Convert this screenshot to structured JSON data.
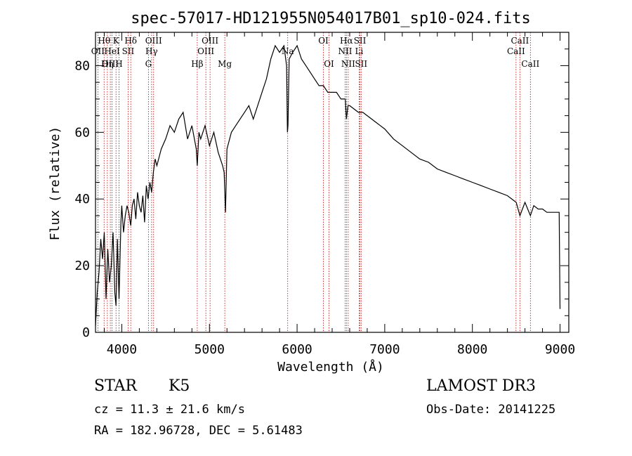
{
  "chart_data": {
    "type": "line",
    "title": "spec-57017-HD121955N054017B01_sp10-024.fits",
    "xlabel": "Wavelength (Å)",
    "ylabel": "Flux (relative)",
    "xlim": [
      3700,
      9100
    ],
    "ylim": [
      0,
      90
    ],
    "x_ticks": [
      4000,
      5000,
      6000,
      7000,
      8000,
      9000
    ],
    "y_ticks": [
      0,
      20,
      40,
      60,
      80
    ],
    "series": [
      {
        "name": "flux",
        "x": [
          3700,
          3720,
          3740,
          3760,
          3780,
          3800,
          3820,
          3840,
          3860,
          3880,
          3900,
          3920,
          3934,
          3950,
          3968,
          3990,
          4000,
          4020,
          4040,
          4060,
          4080,
          4102,
          4120,
          4140,
          4160,
          4180,
          4200,
          4220,
          4240,
          4260,
          4280,
          4300,
          4320,
          4340,
          4360,
          4380,
          4400,
          4450,
          4500,
          4550,
          4600,
          4650,
          4700,
          4750,
          4800,
          4850,
          4861,
          4880,
          4900,
          4950,
          5000,
          5050,
          5100,
          5150,
          5168,
          5183,
          5200,
          5250,
          5300,
          5350,
          5400,
          5450,
          5500,
          5550,
          5600,
          5650,
          5700,
          5750,
          5800,
          5850,
          5880,
          5890,
          5896,
          5910,
          5950,
          6000,
          6050,
          6100,
          6150,
          6200,
          6250,
          6300,
          6350,
          6400,
          6450,
          6500,
          6550,
          6563,
          6580,
          6600,
          6650,
          6700,
          6750,
          6800,
          6850,
          6900,
          6950,
          7000,
          7100,
          7200,
          7300,
          7400,
          7500,
          7600,
          7700,
          7800,
          7900,
          8000,
          8100,
          8200,
          8300,
          8400,
          8500,
          8542,
          8600,
          8662,
          8700,
          8750,
          8800,
          8850,
          8900,
          8950,
          8990,
          9000
        ],
        "values": [
          2,
          12,
          18,
          28,
          22,
          30,
          10,
          25,
          15,
          20,
          30,
          12,
          8,
          28,
          10,
          33,
          38,
          30,
          35,
          38,
          36,
          32,
          38,
          40,
          34,
          42,
          38,
          36,
          41,
          33,
          44,
          40,
          45,
          42,
          48,
          52,
          50,
          55,
          58,
          62,
          60,
          64,
          66,
          58,
          62,
          55,
          50,
          60,
          58,
          62,
          56,
          60,
          54,
          50,
          48,
          36,
          55,
          60,
          62,
          64,
          66,
          68,
          64,
          68,
          72,
          76,
          82,
          86,
          84,
          86,
          80,
          60,
          62,
          82,
          84,
          86,
          82,
          80,
          78,
          76,
          74,
          74,
          72,
          72,
          72,
          70,
          70,
          64,
          68,
          68,
          67,
          66,
          66,
          65,
          64,
          63,
          62,
          61,
          58,
          56,
          54,
          52,
          51,
          49,
          48,
          47,
          46,
          45,
          44,
          43,
          42,
          41,
          39,
          35,
          39,
          35,
          38,
          37,
          37,
          36,
          36,
          36,
          36,
          7
        ]
      }
    ],
    "spectral_lines": [
      {
        "label": "Hθ",
        "wavelength": 3798,
        "row": 1
      },
      {
        "label": "OII",
        "wavelength": 3727,
        "row": 2
      },
      {
        "label": "Hη",
        "wavelength": 3835,
        "row": 3
      },
      {
        "label": "OIII",
        "wavelength": 3869,
        "row": 3
      },
      {
        "label": "HeI",
        "wavelength": 3889,
        "row": 2
      },
      {
        "label": "K",
        "wavelength": 3934,
        "row": 1
      },
      {
        "label": "H",
        "wavelength": 3968,
        "row": 3
      },
      {
        "label": "SII",
        "wavelength": 4072,
        "row": 2
      },
      {
        "label": "Hδ",
        "wavelength": 4102,
        "row": 1
      },
      {
        "label": "G",
        "wavelength": 4304,
        "row": 3
      },
      {
        "label": "Hγ",
        "wavelength": 4340,
        "row": 2
      },
      {
        "label": "OIII",
        "wavelength": 4363,
        "row": 1
      },
      {
        "label": "Hβ",
        "wavelength": 4861,
        "row": 3
      },
      {
        "label": "OIII",
        "wavelength": 4959,
        "row": 2
      },
      {
        "label": "OIII",
        "wavelength": 5007,
        "row": 1
      },
      {
        "label": "Mg",
        "wavelength": 5175,
        "row": 3
      },
      {
        "label": "Na",
        "wavelength": 5893,
        "row": 2
      },
      {
        "label": "OI",
        "wavelength": 6300,
        "row": 1
      },
      {
        "label": "OI",
        "wavelength": 6364,
        "row": 3
      },
      {
        "label": "NII",
        "wavelength": 6548,
        "row": 2
      },
      {
        "label": "Hα",
        "wavelength": 6563,
        "row": 1
      },
      {
        "label": "NII",
        "wavelength": 6583,
        "row": 3
      },
      {
        "label": "Li",
        "wavelength": 6708,
        "row": 2
      },
      {
        "label": "SII",
        "wavelength": 6717,
        "row": 1
      },
      {
        "label": "SII",
        "wavelength": 6731,
        "row": 3
      },
      {
        "label": "CaII",
        "wavelength": 8498,
        "row": 2
      },
      {
        "label": "CaII",
        "wavelength": 8542,
        "row": 1
      },
      {
        "label": "CaII",
        "wavelength": 8662,
        "row": 3
      }
    ]
  },
  "info": {
    "object_class": "STAR",
    "object_subclass": "K5",
    "survey": "LAMOST DR3",
    "redshift": "cz = 11.3 ± 21.6 km/s",
    "obs_date": "Obs-Date: 20141225",
    "coordinates": "RA = 182.96728, DEC =   5.61483"
  },
  "colors": {
    "spectrum": "#000000",
    "line_marker": "#cc0000",
    "axes": "#000000"
  }
}
